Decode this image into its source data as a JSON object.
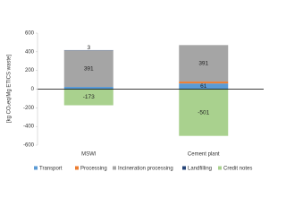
{
  "chart_data": {
    "type": "stacked_bar",
    "y_label": "[kg CO₂eq/Mg ETICS waste]",
    "categories": [
      "MSWI",
      "Cement plant"
    ],
    "series": [
      {
        "name": "Transport",
        "color": "#5b9bd5",
        "values": [
          24,
          61
        ]
      },
      {
        "name": "Processing",
        "color": "#ed7d31",
        "values": [
          0,
          20
        ]
      },
      {
        "name": "Incineration processing",
        "color": "#a5a5a5",
        "values": [
          391,
          391
        ]
      },
      {
        "name": "Landfilling",
        "color": "#264478",
        "values": [
          3,
          0
        ]
      },
      {
        "name": "Credit notes",
        "color": "#a9d18e",
        "values": [
          -173,
          -501
        ]
      }
    ],
    "ylim": [
      -600,
      600
    ],
    "yticks": [
      -600,
      -400,
      -200,
      0,
      200,
      400,
      600
    ],
    "grid": false,
    "legend": "bottom"
  }
}
